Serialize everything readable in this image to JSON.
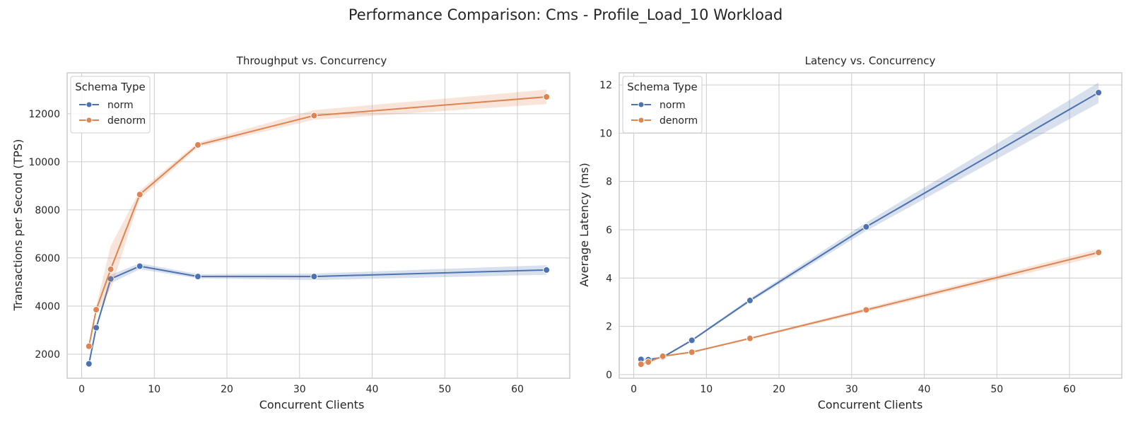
{
  "figure": {
    "suptitle": "Performance Comparison: Cms - Profile_Load_10 Workload"
  },
  "colors": {
    "norm": "#4c72b0",
    "denorm": "#dd8452",
    "grid": "#cccccc",
    "frame": "#cccccc"
  },
  "chart_data": [
    {
      "type": "line",
      "title": "Throughput vs. Concurrency",
      "xlabel": "Concurrent Clients",
      "ylabel": "Transactions per Second (TPS)",
      "xlim": [
        -2,
        67.2
      ],
      "ylim": [
        1000,
        13700
      ],
      "xticks": [
        0,
        10,
        20,
        30,
        40,
        50,
        60
      ],
      "yticks": [
        2000,
        4000,
        6000,
        8000,
        10000,
        12000
      ],
      "grid": true,
      "legend": {
        "title": "Schema Type",
        "placement": "top-left"
      },
      "x": [
        1,
        2,
        4,
        8,
        16,
        32,
        64
      ],
      "series": [
        {
          "name": "norm",
          "color": "#4c72b0",
          "values": [
            1600,
            3100,
            5130,
            5660,
            5230,
            5230,
            5500
          ],
          "ci_low": [
            1550,
            3000,
            4950,
            5530,
            5150,
            5080,
            5300
          ],
          "ci_high": [
            1650,
            3200,
            5300,
            5780,
            5330,
            5350,
            5700
          ]
        },
        {
          "name": "denorm",
          "color": "#dd8452",
          "values": [
            2330,
            3850,
            5530,
            8640,
            10700,
            11920,
            12700
          ],
          "ci_low": [
            2250,
            3700,
            4700,
            8450,
            10600,
            11750,
            12400
          ],
          "ci_high": [
            2420,
            4000,
            6500,
            8800,
            10800,
            12150,
            13000
          ]
        }
      ]
    },
    {
      "type": "line",
      "title": "Latency vs. Concurrency",
      "xlabel": "Concurrent Clients",
      "ylabel": "Average Latency (ms)",
      "xlim": [
        -2,
        67.2
      ],
      "ylim": [
        -0.15,
        12.5
      ],
      "xticks": [
        0,
        10,
        20,
        30,
        40,
        50,
        60
      ],
      "yticks": [
        0,
        2,
        4,
        6,
        8,
        10,
        12
      ],
      "grid": true,
      "legend": {
        "title": "Schema Type",
        "placement": "top-left"
      },
      "x": [
        1,
        2,
        4,
        8,
        16,
        32,
        64
      ],
      "series": [
        {
          "name": "norm",
          "color": "#4c72b0",
          "values": [
            0.63,
            0.62,
            0.72,
            1.42,
            3.07,
            6.12,
            11.68
          ],
          "ci_low": [
            0.6,
            0.6,
            0.68,
            1.38,
            3.0,
            5.95,
            11.25
          ],
          "ci_high": [
            0.66,
            0.65,
            0.76,
            1.46,
            3.15,
            6.3,
            12.1
          ]
        },
        {
          "name": "denorm",
          "color": "#dd8452",
          "values": [
            0.43,
            0.52,
            0.76,
            0.93,
            1.5,
            2.68,
            5.06
          ],
          "ci_low": [
            0.41,
            0.5,
            0.72,
            0.9,
            1.46,
            2.6,
            4.9
          ],
          "ci_high": [
            0.45,
            0.54,
            0.8,
            0.97,
            1.54,
            2.76,
            5.2
          ]
        }
      ]
    }
  ]
}
